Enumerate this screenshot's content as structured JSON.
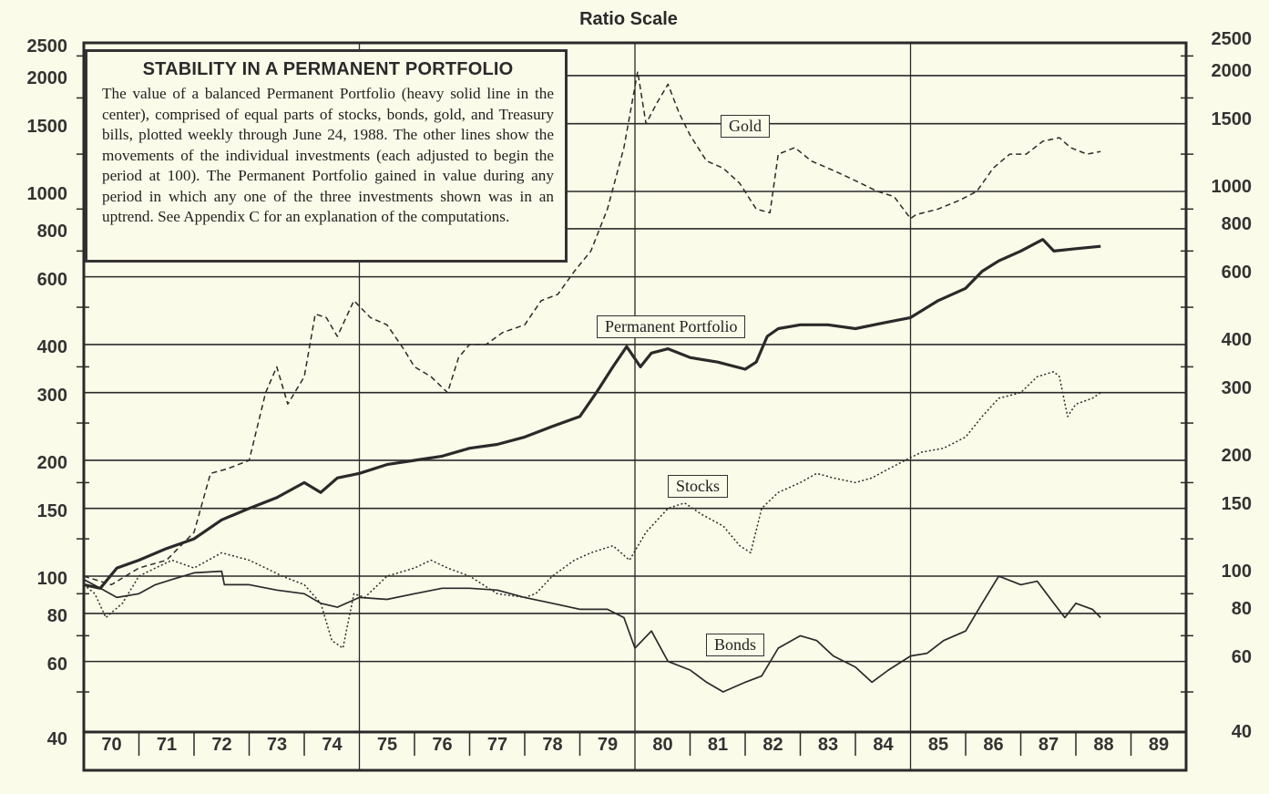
{
  "chart_data": {
    "type": "line",
    "title": "Ratio Scale",
    "yscale": "log",
    "ylim": [
      40,
      2500
    ],
    "yticks": [
      "2500",
      "2000",
      "1500",
      "1000",
      "800",
      "600",
      "400",
      "300",
      "200",
      "150",
      "100",
      "80",
      "60",
      "40"
    ],
    "ytick_values": [
      2500,
      2000,
      1500,
      1000,
      800,
      600,
      400,
      300,
      200,
      150,
      100,
      80,
      60,
      40
    ],
    "xticks": [
      "70",
      "71",
      "72",
      "73",
      "74",
      "75",
      "76",
      "77",
      "78",
      "79",
      "80",
      "81",
      "82",
      "83",
      "84",
      "85",
      "86",
      "87",
      "88",
      "89"
    ],
    "xlim": [
      1970,
      1990
    ],
    "grid": true,
    "info_box": {
      "heading": "STABILITY IN A PERMANENT PORTFOLIO",
      "text": "The value of a balanced Permanent Portfolio (heavy solid line in the center), comprised of equal parts of stocks, bonds, gold, and Treasury bills, plotted weekly through June 24, 1988. The other lines show the movements of the individual investments (each adjusted to begin the period at 100). The Permanent Portfolio gained in value during any period in which any one of the three investments shown was in an uptrend. See Appendix C for an explanation of the computations."
    },
    "series": [
      {
        "name": "Gold",
        "style": "dashed",
        "x": [
          1970.0,
          1970.5,
          1971.0,
          1971.5,
          1972.0,
          1972.3,
          1972.6,
          1973.0,
          1973.3,
          1973.5,
          1973.7,
          1974.0,
          1974.2,
          1974.4,
          1974.6,
          1974.9,
          1975.2,
          1975.5,
          1975.8,
          1976.0,
          1976.3,
          1976.6,
          1976.8,
          1977.0,
          1977.3,
          1977.6,
          1978.0,
          1978.3,
          1978.6,
          1978.9,
          1979.2,
          1979.5,
          1979.8,
          1980.05,
          1980.2,
          1980.4,
          1980.6,
          1980.8,
          1981.0,
          1981.3,
          1981.6,
          1981.9,
          1982.2,
          1982.45,
          1982.6,
          1982.9,
          1983.2,
          1983.5,
          1983.8,
          1984.1,
          1984.4,
          1984.7,
          1985.0,
          1985.1,
          1985.5,
          1985.9,
          1986.2,
          1986.5,
          1986.8,
          1987.1,
          1987.4,
          1987.7,
          1987.9,
          1988.2,
          1988.45
        ],
        "values": [
          100,
          95,
          105,
          110,
          130,
          185,
          190,
          200,
          300,
          350,
          280,
          330,
          480,
          470,
          420,
          520,
          470,
          450,
          390,
          350,
          330,
          300,
          370,
          400,
          400,
          430,
          450,
          520,
          540,
          620,
          700,
          900,
          1300,
          2050,
          1500,
          1700,
          1900,
          1600,
          1400,
          1200,
          1150,
          1050,
          900,
          880,
          1250,
          1300,
          1200,
          1150,
          1100,
          1050,
          1000,
          970,
          850,
          870,
          900,
          950,
          1000,
          1150,
          1250,
          1250,
          1350,
          1380,
          1300,
          1250,
          1270
        ]
      },
      {
        "name": "Permanent Portfolio",
        "style": "heavy-solid",
        "x": [
          1970.0,
          1970.3,
          1970.6,
          1971.0,
          1971.5,
          1972.0,
          1972.5,
          1973.0,
          1973.5,
          1974.0,
          1974.3,
          1974.6,
          1975.0,
          1975.5,
          1976.0,
          1976.5,
          1977.0,
          1977.5,
          1978.0,
          1978.5,
          1979.0,
          1979.3,
          1979.6,
          1979.85,
          1980.1,
          1980.3,
          1980.6,
          1981.0,
          1981.5,
          1982.0,
          1982.2,
          1982.4,
          1982.6,
          1983.0,
          1983.5,
          1984.0,
          1984.5,
          1985.0,
          1985.5,
          1986.0,
          1986.3,
          1986.6,
          1987.0,
          1987.4,
          1987.6,
          1988.0,
          1988.45
        ],
        "values": [
          95,
          93,
          105,
          110,
          118,
          125,
          140,
          150,
          160,
          175,
          165,
          180,
          185,
          195,
          200,
          205,
          215,
          220,
          230,
          245,
          260,
          300,
          350,
          395,
          350,
          380,
          390,
          370,
          360,
          345,
          360,
          420,
          440,
          450,
          450,
          440,
          455,
          470,
          520,
          560,
          620,
          660,
          700,
          750,
          700,
          710,
          720
        ]
      },
      {
        "name": "Stocks",
        "style": "dotted",
        "x": [
          1970.0,
          1970.2,
          1970.4,
          1970.7,
          1971.0,
          1971.3,
          1971.6,
          1972.0,
          1972.5,
          1973.0,
          1973.3,
          1973.6,
          1974.0,
          1974.3,
          1974.5,
          1974.7,
          1974.9,
          1975.1,
          1975.5,
          1976.0,
          1976.3,
          1976.6,
          1977.0,
          1977.5,
          1978.0,
          1978.2,
          1978.5,
          1978.9,
          1979.2,
          1979.6,
          1979.9,
          1980.2,
          1980.6,
          1980.9,
          1981.2,
          1981.6,
          1981.9,
          1982.1,
          1982.3,
          1982.6,
          1983.0,
          1983.3,
          1983.6,
          1984.0,
          1984.3,
          1984.6,
          1984.9,
          1985.2,
          1985.6,
          1986.0,
          1986.3,
          1986.6,
          1987.0,
          1987.3,
          1987.6,
          1987.7,
          1987.85,
          1988.0,
          1988.3,
          1988.45
        ],
        "values": [
          95,
          90,
          78,
          85,
          100,
          105,
          110,
          105,
          115,
          110,
          105,
          100,
          95,
          85,
          68,
          65,
          90,
          88,
          100,
          105,
          110,
          105,
          100,
          90,
          88,
          90,
          100,
          110,
          115,
          120,
          110,
          130,
          150,
          155,
          145,
          135,
          120,
          115,
          150,
          165,
          175,
          185,
          180,
          175,
          180,
          190,
          200,
          210,
          215,
          230,
          260,
          290,
          300,
          330,
          340,
          330,
          260,
          280,
          290,
          300
        ]
      },
      {
        "name": "Bonds",
        "style": "solid",
        "x": [
          1970.0,
          1970.3,
          1970.6,
          1971.0,
          1971.3,
          1971.6,
          1972.0,
          1972.5,
          1972.55,
          1973.0,
          1973.5,
          1974.0,
          1974.3,
          1974.6,
          1975.0,
          1975.5,
          1976.0,
          1976.5,
          1977.0,
          1977.5,
          1978.0,
          1978.5,
          1979.0,
          1979.5,
          1979.8,
          1980.0,
          1980.3,
          1980.6,
          1981.0,
          1981.3,
          1981.6,
          1982.0,
          1982.3,
          1982.6,
          1983.0,
          1983.3,
          1983.6,
          1984.0,
          1984.3,
          1984.6,
          1985.0,
          1985.3,
          1985.6,
          1986.0,
          1986.3,
          1986.6,
          1987.0,
          1987.3,
          1987.6,
          1987.8,
          1988.0,
          1988.3,
          1988.45
        ],
        "values": [
          98,
          93,
          88,
          90,
          95,
          98,
          102,
          103,
          95,
          95,
          92,
          90,
          85,
          83,
          88,
          87,
          90,
          93,
          93,
          92,
          88,
          85,
          82,
          82,
          78,
          65,
          72,
          60,
          57,
          53,
          50,
          53,
          55,
          65,
          70,
          68,
          62,
          58,
          53,
          57,
          62,
          63,
          68,
          72,
          85,
          100,
          95,
          97,
          85,
          78,
          85,
          82,
          78
        ]
      }
    ],
    "annotations": [
      "Gold",
      "Permanent Portfolio",
      "Stocks",
      "Bonds"
    ]
  },
  "colors": {
    "background": "#fbfbe9",
    "ink": "#2a2a2a"
  }
}
